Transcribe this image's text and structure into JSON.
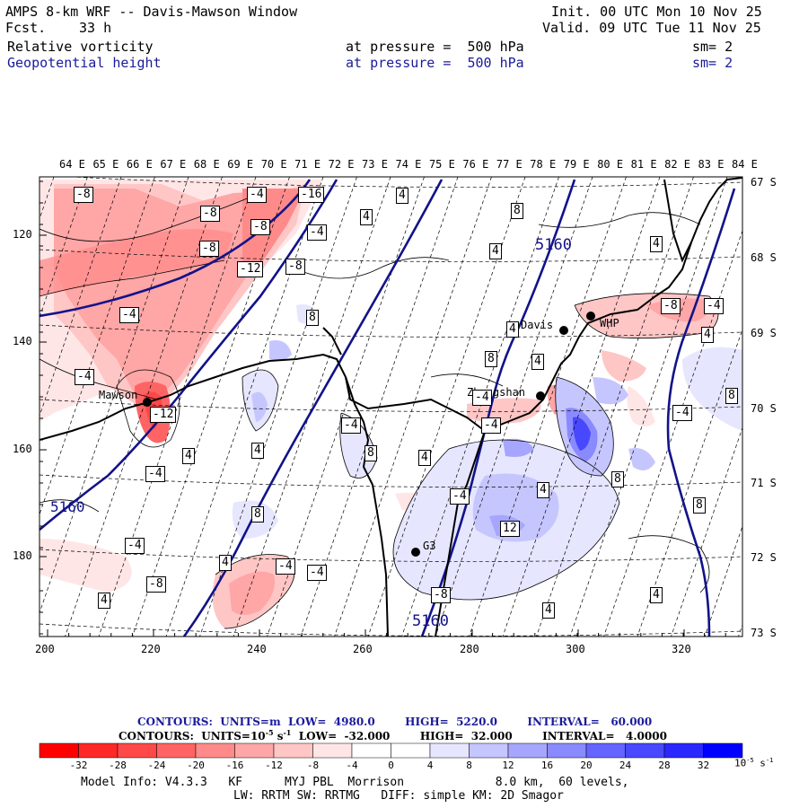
{
  "header": {
    "title": "AMPS 8-km WRF -- Davis-Mawson Window",
    "fcst_label": "Fcst.",
    "fcst_value": "33 h",
    "init": "Init. 00 UTC Mon 10 Nov 25",
    "valid": "Valid. 09 UTC Tue 11 Nov 25",
    "field1": {
      "name": "Relative vorticity",
      "level_text": "at pressure =  500 hPa",
      "smooth": "sm= 2"
    },
    "field2": {
      "name": "Geopotential height",
      "level_text": "at pressure =  500 hPa",
      "smooth": "sm= 2"
    }
  },
  "map": {
    "top_axis_labels": [
      "64 E",
      "65 E",
      "66 E",
      "67 E",
      "68 E",
      "69 E",
      "70 E",
      "71 E",
      "72 E",
      "73 E",
      "74 E",
      "75 E",
      "76 E",
      "77 E",
      "78 E",
      "79 E",
      "80 E",
      "81 E",
      "82 E",
      "83 E",
      "84 E"
    ],
    "right_axis_labels": [
      "67 S",
      "68 S",
      "69 S",
      "70 S",
      "71 S",
      "72 S",
      "73 S"
    ],
    "left_axis_labels": [
      "120",
      "140",
      "160",
      "180"
    ],
    "bottom_axis_labels": [
      "200",
      "220",
      "240",
      "260",
      "280",
      "300",
      "320"
    ],
    "stations": [
      {
        "name": "Mawson"
      },
      {
        "name": "Davis"
      },
      {
        "name": "WHP"
      },
      {
        "name": "Zhongshan"
      },
      {
        "name": "G3"
      }
    ],
    "height_contour_labels": [
      "5160",
      "5160",
      "5160"
    ],
    "vorticity_box_labels": [
      "-8",
      "-4",
      "-16",
      "-8",
      "-8",
      "4",
      "-8",
      "-4",
      "-12",
      "4",
      "-8",
      "4",
      "-4",
      "8",
      "-4",
      "-12",
      "4",
      "-4",
      "-4",
      "4",
      "8",
      "4",
      "-4",
      "-4",
      "4",
      "-8",
      "-4",
      "8",
      "-4",
      "4",
      "8",
      "4",
      "8",
      "4",
      "-4",
      "4",
      "8",
      "8",
      "-4",
      "4",
      "12",
      "4",
      "-4",
      "-4",
      "-8",
      "-8",
      "8",
      "4",
      "4"
    ],
    "colors": {
      "neg_strong": "#ff0000",
      "neg_1": "#ffb3b3",
      "neg_2": "#ff8080",
      "neg_3": "#ff5959",
      "pos_1": "#e0e0ff",
      "pos_2": "#b8b8ff",
      "pos_3": "#8080ff",
      "pos_strong": "#0000ff",
      "height_contour": "#12128a",
      "coast": "#000000"
    }
  },
  "contour_info": {
    "line1": "CONTOURS:  UNITS=m  LOW=  4980.0        HIGH=  5220.0        INTERVAL=   60.000",
    "line2_a": "CONTOURS:  UNITS=10",
    "line2_exp": "-5",
    "line2_b": " s",
    "line2_exp2": "-1",
    "line2_c": "  LOW=  -32.000        HIGH=  32.000        INTERVAL=   4.0000"
  },
  "colorbar": {
    "colors": [
      "#ff0000",
      "#ff2828",
      "#ff4848",
      "#ff6464",
      "#ff8a8a",
      "#ffa6a6",
      "#ffc6c6",
      "#ffe6e6",
      "#ffffff",
      "#ffffff",
      "#e6e6ff",
      "#c6c6ff",
      "#a6a6ff",
      "#8a8aff",
      "#6464ff",
      "#4848ff",
      "#2828ff",
      "#0000ff"
    ],
    "tick_labels": [
      "-32",
      "-28",
      "-24",
      "-20",
      "-16",
      "-12",
      "-8",
      "-4",
      "0",
      "4",
      "8",
      "12",
      "16",
      "20",
      "24",
      "28",
      "32"
    ],
    "unit_a": "10",
    "unit_exp": "-5",
    "unit_b": " s",
    "unit_exp2": "-1"
  },
  "footer": {
    "line1": "Model Info: V4.3.3   KF      MYJ PBL  Morrison             8.0 km,  60 levels,",
    "line2": "LW: RRTM SW: RRTMG   DIFF: simple KM: 2D Smagor"
  }
}
